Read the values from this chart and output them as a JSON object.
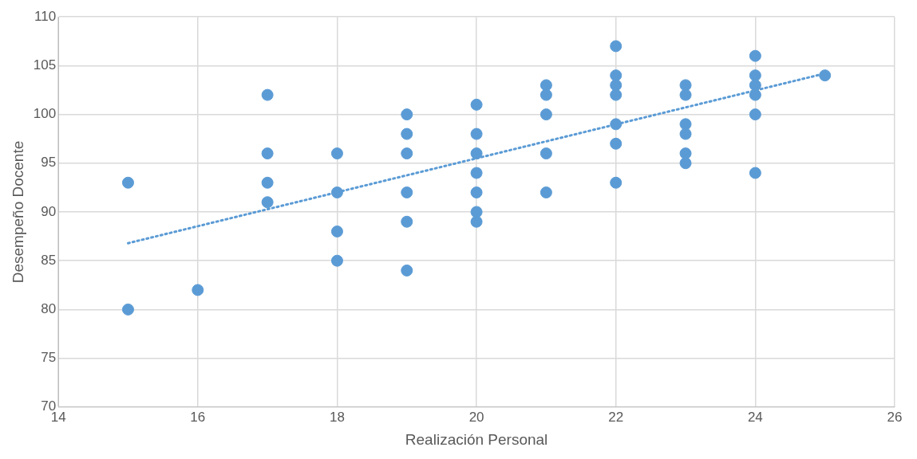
{
  "chart_data": {
    "type": "scatter",
    "xlabel": "Realización Personal",
    "ylabel": "Desempeño Docente",
    "xlim": [
      14,
      26
    ],
    "xticks": [
      14,
      16,
      18,
      20,
      22,
      24,
      26
    ],
    "ylim": [
      70,
      110
    ],
    "yticks": [
      70,
      75,
      80,
      85,
      90,
      95,
      100,
      105,
      110
    ],
    "grid": true,
    "legend": false,
    "marker": "circle",
    "series": [
      {
        "color": "#5b9bd5",
        "x": [
          15,
          15,
          16,
          17,
          17,
          17,
          17,
          18,
          18,
          18,
          18,
          19,
          19,
          19,
          19,
          19,
          19,
          20,
          20,
          20,
          20,
          20,
          20,
          20,
          21,
          21,
          21,
          21,
          21,
          22,
          22,
          22,
          22,
          22,
          22,
          22,
          23,
          23,
          23,
          23,
          23,
          23,
          24,
          24,
          24,
          24,
          24,
          24,
          25
        ],
        "values": [
          93,
          80,
          82,
          102,
          96,
          93,
          91,
          96,
          92,
          88,
          85,
          100,
          98,
          96,
          92,
          89,
          84,
          101,
          98,
          96,
          94,
          92,
          90,
          89,
          103,
          102,
          100,
          96,
          92,
          107,
          104,
          103,
          102,
          99,
          97,
          93,
          103,
          102,
          99,
          98,
          96,
          95,
          106,
          104,
          103,
          102,
          100,
          94,
          104
        ]
      },
      {
        "type": "line",
        "color": "#5b9bd5",
        "marker": "none",
        "line_style": "dotted",
        "x": [
          15,
          25
        ],
        "values": [
          86.8,
          104.2
        ]
      }
    ]
  }
}
